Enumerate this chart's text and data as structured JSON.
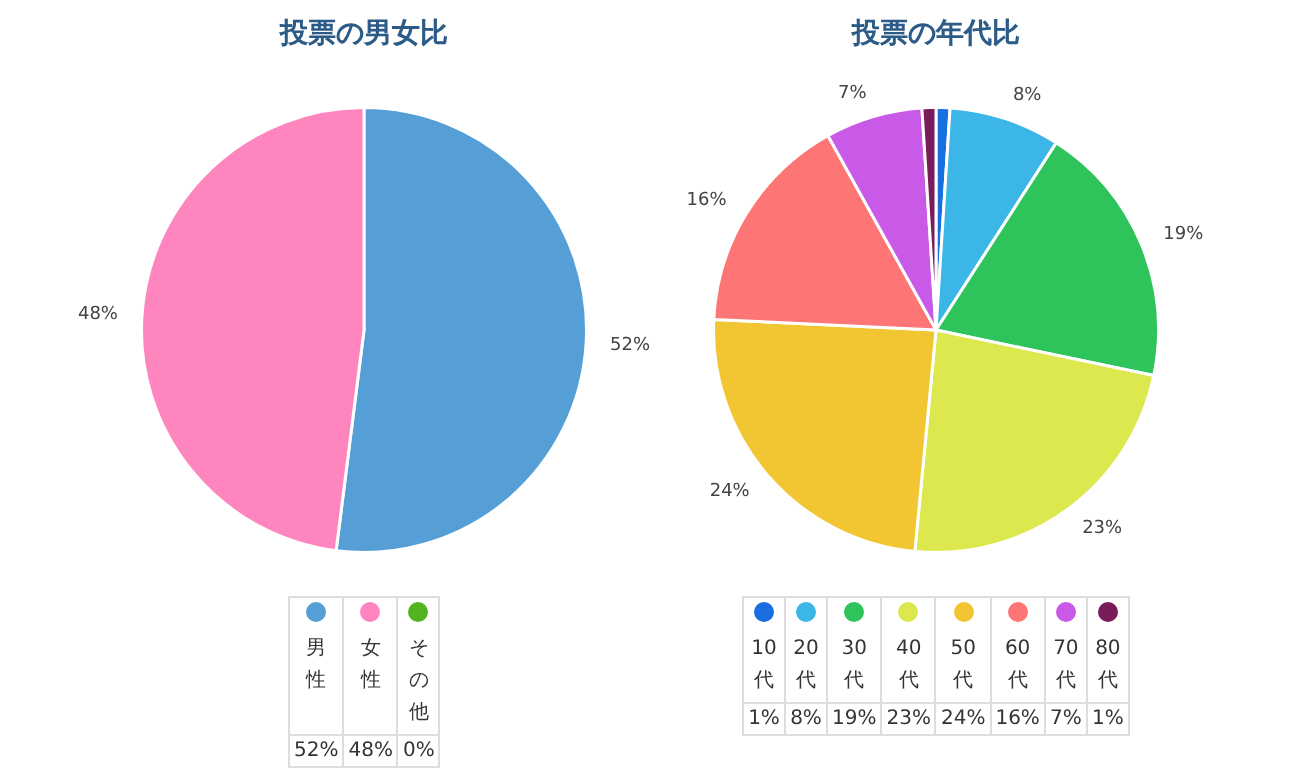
{
  "chart_data": [
    {
      "type": "pie",
      "title": "投票の男女比",
      "categories": [
        "男性",
        "女性",
        "その他"
      ],
      "values": [
        52,
        48,
        0
      ],
      "colors": [
        "#559fd6",
        "#ff85be",
        "#52b520"
      ],
      "value_labels": [
        "52%",
        "48%",
        "0%"
      ],
      "legend": "bottom"
    },
    {
      "type": "pie",
      "title": "投票の年代比",
      "categories": [
        "10代",
        "20代",
        "30代",
        "40代",
        "50代",
        "60代",
        "70代",
        "80代"
      ],
      "values": [
        1,
        8,
        19,
        23,
        24,
        16,
        7,
        1
      ],
      "colors": [
        "#1a6fe0",
        "#3bb6e6",
        "#2fc45b",
        "#dde84e",
        "#f2c632",
        "#fe7575",
        "#c95ae8",
        "#7a1b5a"
      ],
      "value_labels": [
        "1%",
        "8%",
        "19%",
        "23%",
        "24%",
        "16%",
        "7%",
        "1%"
      ],
      "legend": "bottom"
    }
  ]
}
